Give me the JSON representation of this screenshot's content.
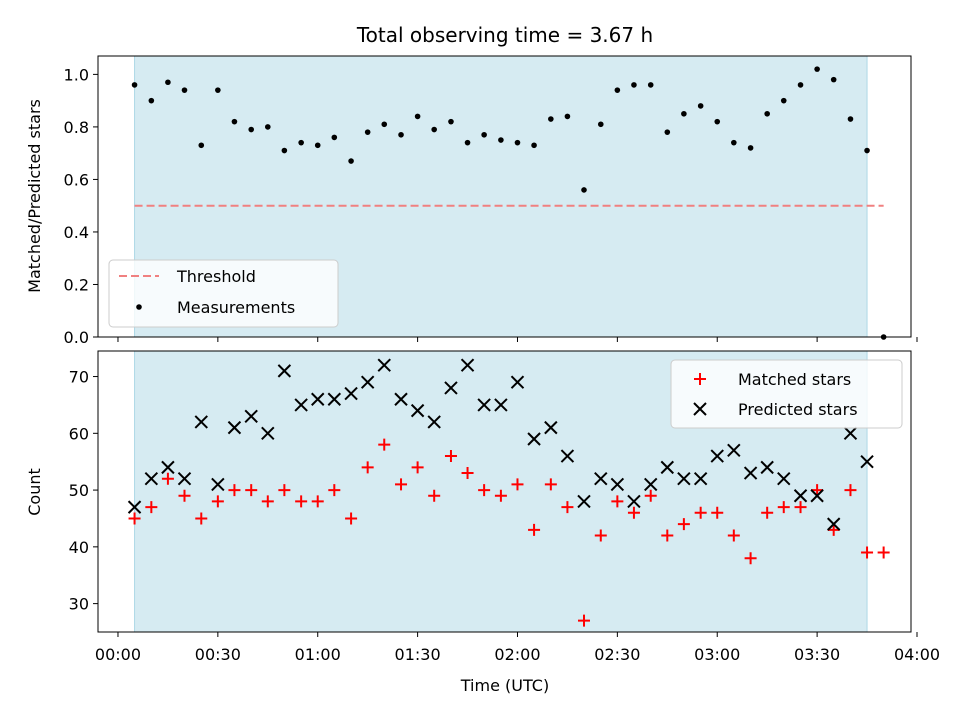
{
  "chart_data": [
    {
      "type": "scatter",
      "title": "Total observing time = 3.67 h",
      "ylabel": "Matched/Predicted stars",
      "xlim": [
        -0.1,
        3.97
      ],
      "ylim": [
        0,
        1.07
      ],
      "yticks": [
        "0.0",
        "0.2",
        "0.4",
        "0.6",
        "0.8",
        "1.0"
      ],
      "shaded_span": [
        0.083,
        3.75
      ],
      "shade_color": "#add8e6",
      "threshold": {
        "name": "Threshold",
        "value": 0.5,
        "x_range": [
          0.083,
          3.833
        ],
        "color": "#f08080",
        "style": "dashed"
      },
      "series": [
        {
          "name": "Measurements",
          "color": "#000000",
          "marker": "dot",
          "x": [
            0.083,
            0.167,
            0.25,
            0.333,
            0.417,
            0.5,
            0.583,
            0.667,
            0.75,
            0.833,
            0.917,
            1.0,
            1.083,
            1.167,
            1.25,
            1.333,
            1.417,
            1.5,
            1.583,
            1.667,
            1.75,
            1.833,
            1.917,
            2.0,
            2.083,
            2.167,
            2.25,
            2.333,
            2.417,
            2.5,
            2.583,
            2.667,
            2.75,
            2.833,
            2.917,
            3.0,
            3.083,
            3.167,
            3.25,
            3.333,
            3.417,
            3.5,
            3.583,
            3.667,
            3.75,
            3.833
          ],
          "y": [
            0.96,
            0.9,
            0.97,
            0.94,
            0.73,
            0.94,
            0.82,
            0.79,
            0.8,
            0.71,
            0.74,
            0.73,
            0.76,
            0.67,
            0.78,
            0.81,
            0.77,
            0.84,
            0.79,
            0.82,
            0.74,
            0.77,
            0.75,
            0.74,
            0.73,
            0.83,
            0.84,
            0.56,
            0.81,
            0.94,
            0.96,
            0.96,
            0.78,
            0.85,
            0.88,
            0.82,
            0.74,
            0.72,
            0.85,
            0.9,
            0.96,
            1.02,
            0.98,
            0.83,
            0.71,
            0.0
          ]
        }
      ],
      "legend": {
        "position": "lower-left"
      }
    },
    {
      "type": "scatter",
      "xlabel": "Time (UTC)",
      "ylabel": "Count",
      "xlim": [
        -0.1,
        3.97
      ],
      "ylim": [
        25,
        74.5
      ],
      "xticks": [
        "00:00",
        "00:30",
        "01:00",
        "01:30",
        "02:00",
        "02:30",
        "03:00",
        "03:30",
        "04:00"
      ],
      "xtick_values": [
        0,
        0.5,
        1,
        1.5,
        2,
        2.5,
        3,
        3.5,
        4
      ],
      "yticks": [
        "30",
        "40",
        "50",
        "60",
        "70"
      ],
      "shaded_span": [
        0.083,
        3.75
      ],
      "shade_color": "#add8e6",
      "series": [
        {
          "name": "Matched stars",
          "color": "#ff0000",
          "marker": "plus",
          "x": [
            0.083,
            0.167,
            0.25,
            0.333,
            0.417,
            0.5,
            0.583,
            0.667,
            0.75,
            0.833,
            0.917,
            1.0,
            1.083,
            1.167,
            1.25,
            1.333,
            1.417,
            1.5,
            1.583,
            1.667,
            1.75,
            1.833,
            1.917,
            2.0,
            2.083,
            2.167,
            2.25,
            2.333,
            2.417,
            2.5,
            2.583,
            2.667,
            2.75,
            2.833,
            2.917,
            3.0,
            3.083,
            3.167,
            3.25,
            3.333,
            3.417,
            3.5,
            3.583,
            3.667,
            3.75,
            3.833
          ],
          "y": [
            45,
            47,
            52,
            49,
            45,
            48,
            50,
            50,
            48,
            50,
            48,
            48,
            50,
            45,
            54,
            58,
            51,
            54,
            49,
            56,
            53,
            50,
            49,
            51,
            43,
            51,
            47,
            27,
            42,
            48,
            46,
            49,
            42,
            44,
            46,
            46,
            42,
            38,
            46,
            47,
            47,
            50,
            43,
            50,
            39,
            39
          ]
        },
        {
          "name": "Predicted stars",
          "color": "#000000",
          "marker": "x",
          "x": [
            0.083,
            0.167,
            0.25,
            0.333,
            0.417,
            0.5,
            0.583,
            0.667,
            0.75,
            0.833,
            0.917,
            1.0,
            1.083,
            1.167,
            1.25,
            1.333,
            1.417,
            1.5,
            1.583,
            1.667,
            1.75,
            1.833,
            1.917,
            2.0,
            2.083,
            2.167,
            2.25,
            2.333,
            2.417,
            2.5,
            2.583,
            2.667,
            2.75,
            2.833,
            2.917,
            3.0,
            3.083,
            3.167,
            3.25,
            3.333,
            3.417,
            3.5,
            3.583,
            3.667,
            3.75
          ],
          "y": [
            47,
            52,
            54,
            52,
            62,
            51,
            61,
            63,
            60,
            71,
            65,
            66,
            66,
            67,
            69,
            72,
            66,
            64,
            62,
            68,
            72,
            65,
            65,
            69,
            59,
            61,
            56,
            48,
            52,
            51,
            48,
            51,
            54,
            52,
            52,
            56,
            57,
            53,
            54,
            52,
            49,
            49,
            44,
            60,
            55
          ]
        }
      ],
      "legend": {
        "position": "upper-right"
      }
    }
  ]
}
